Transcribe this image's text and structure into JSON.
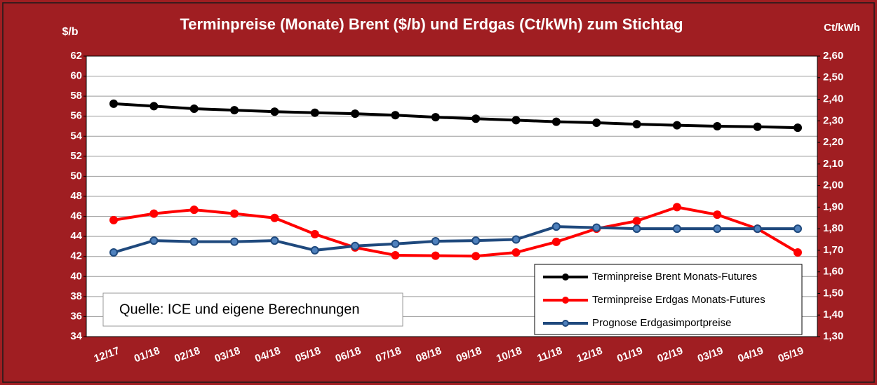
{
  "chart_data": {
    "type": "line",
    "title": "Terminpreise (Monate) Brent ($/b) und Erdgas (Ct/kWh) zum Stichtag",
    "y_label": "$/b",
    "y2_label": "Ct/kWh",
    "annotation": "Quelle: ICE und eigene Berechnungen",
    "categories": [
      "12/17",
      "01/18",
      "02/18",
      "03/18",
      "04/18",
      "05/18",
      "06/18",
      "07/18",
      "08/18",
      "09/18",
      "10/18",
      "11/18",
      "12/18",
      "01/19",
      "02/19",
      "03/19",
      "04/19",
      "05/19"
    ],
    "ylim": [
      34,
      62
    ],
    "yticks": [
      34,
      36,
      38,
      40,
      42,
      44,
      46,
      48,
      50,
      52,
      54,
      56,
      58,
      60,
      62
    ],
    "y2lim": [
      1.3,
      2.6
    ],
    "y2ticks": [
      {
        "value": 1.3,
        "label": "1,30"
      },
      {
        "value": 1.4,
        "label": "1,40"
      },
      {
        "value": 1.5,
        "label": "1,50"
      },
      {
        "value": 1.6,
        "label": "1,60"
      },
      {
        "value": 1.7,
        "label": "1,70"
      },
      {
        "value": 1.8,
        "label": "1,80"
      },
      {
        "value": 1.9,
        "label": "1,90"
      },
      {
        "value": 2.0,
        "label": "2,00"
      },
      {
        "value": 2.1,
        "label": "2,10"
      },
      {
        "value": 2.2,
        "label": "2,20"
      },
      {
        "value": 2.3,
        "label": "2,30"
      },
      {
        "value": 2.4,
        "label": "2,40"
      },
      {
        "value": 2.5,
        "label": "2,50"
      },
      {
        "value": 2.6,
        "label": "2,60"
      }
    ],
    "grid": true,
    "legend": "lower right",
    "series": [
      {
        "name": "Terminpreise Brent Monats-Futures",
        "color": "#000000",
        "axis": "y",
        "values": [
          57.25,
          57.0,
          56.75,
          56.6,
          56.45,
          56.35,
          56.25,
          56.1,
          55.9,
          55.75,
          55.6,
          55.45,
          55.35,
          55.2,
          55.1,
          55.0,
          54.95,
          54.85
        ]
      },
      {
        "name": "Terminpreise Erdgas Monats-Futures",
        "color": "#ff0000",
        "axis": "y2",
        "values": [
          1.84,
          1.87,
          1.888,
          1.87,
          1.85,
          1.775,
          1.713,
          1.677,
          1.675,
          1.673,
          1.69,
          1.739,
          1.8,
          1.836,
          1.9,
          1.865,
          1.8,
          1.69
        ]
      },
      {
        "name": "Prognose Erdgasimportpreise",
        "color": "#1f497d",
        "axis": "y2",
        "values": [
          1.69,
          1.745,
          1.74,
          1.74,
          1.745,
          1.7,
          1.72,
          1.73,
          1.742,
          1.745,
          1.75,
          1.81,
          1.805,
          1.8,
          1.8,
          1.8,
          1.8,
          1.8
        ]
      }
    ]
  }
}
